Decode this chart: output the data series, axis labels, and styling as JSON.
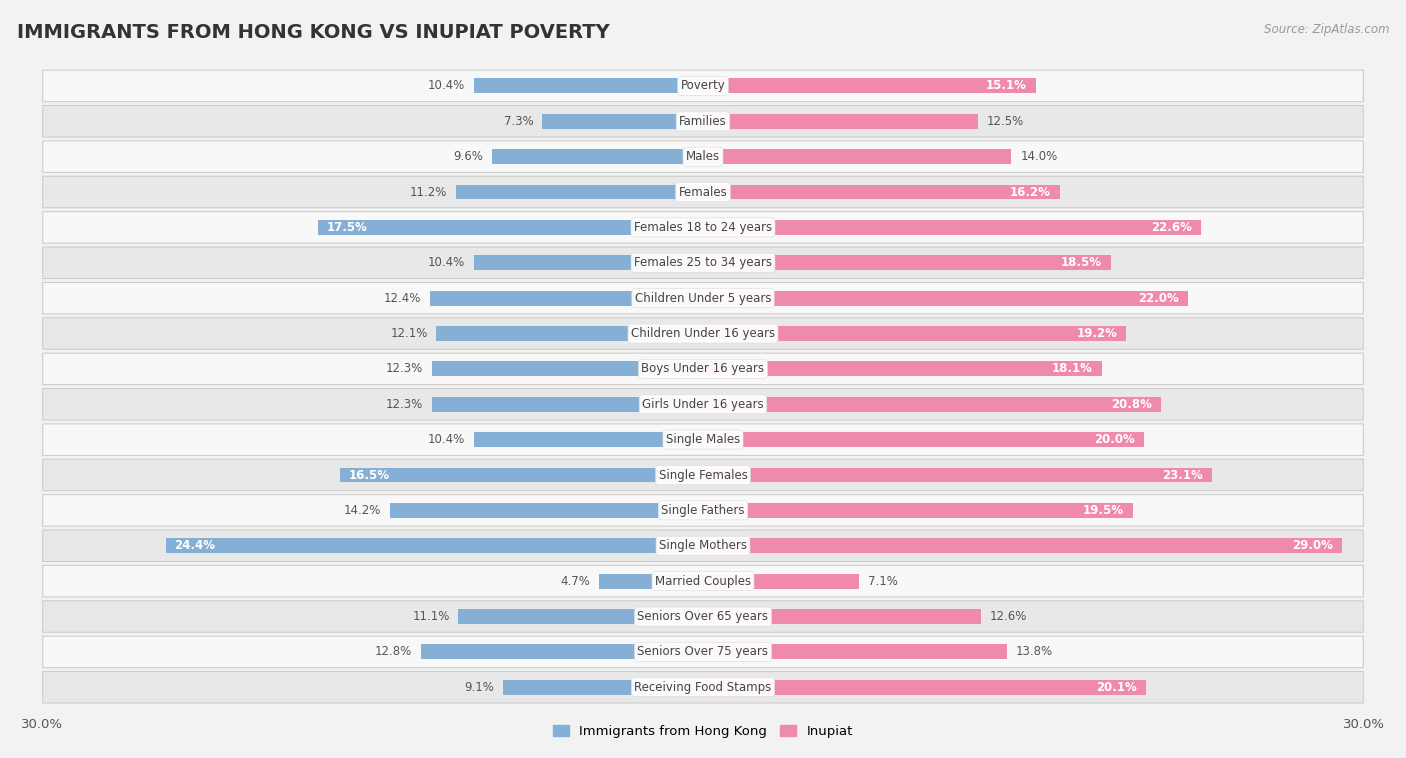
{
  "title": "IMMIGRANTS FROM HONG KONG VS INUPIAT POVERTY",
  "source": "Source: ZipAtlas.com",
  "categories": [
    "Poverty",
    "Families",
    "Males",
    "Females",
    "Females 18 to 24 years",
    "Females 25 to 34 years",
    "Children Under 5 years",
    "Children Under 16 years",
    "Boys Under 16 years",
    "Girls Under 16 years",
    "Single Males",
    "Single Females",
    "Single Fathers",
    "Single Mothers",
    "Married Couples",
    "Seniors Over 65 years",
    "Seniors Over 75 years",
    "Receiving Food Stamps"
  ],
  "hk_values": [
    10.4,
    7.3,
    9.6,
    11.2,
    17.5,
    10.4,
    12.4,
    12.1,
    12.3,
    12.3,
    10.4,
    16.5,
    14.2,
    24.4,
    4.7,
    11.1,
    12.8,
    9.1
  ],
  "inupiat_values": [
    15.1,
    12.5,
    14.0,
    16.2,
    22.6,
    18.5,
    22.0,
    19.2,
    18.1,
    20.8,
    20.0,
    23.1,
    19.5,
    29.0,
    7.1,
    12.6,
    13.8,
    20.1
  ],
  "hk_color": "#85afd4",
  "inupiat_color": "#f08aaa",
  "axis_max": 30.0,
  "bg_color": "#f2f2f2",
  "row_bg_light": "#f8f8f8",
  "row_bg_dark": "#e8e8e8",
  "legend_hk": "Immigrants from Hong Kong",
  "legend_inupiat": "Inupiat",
  "title_fontsize": 14,
  "label_fontsize": 8.5,
  "value_fontsize": 8.5,
  "inupiat_inside_threshold": 15.0
}
